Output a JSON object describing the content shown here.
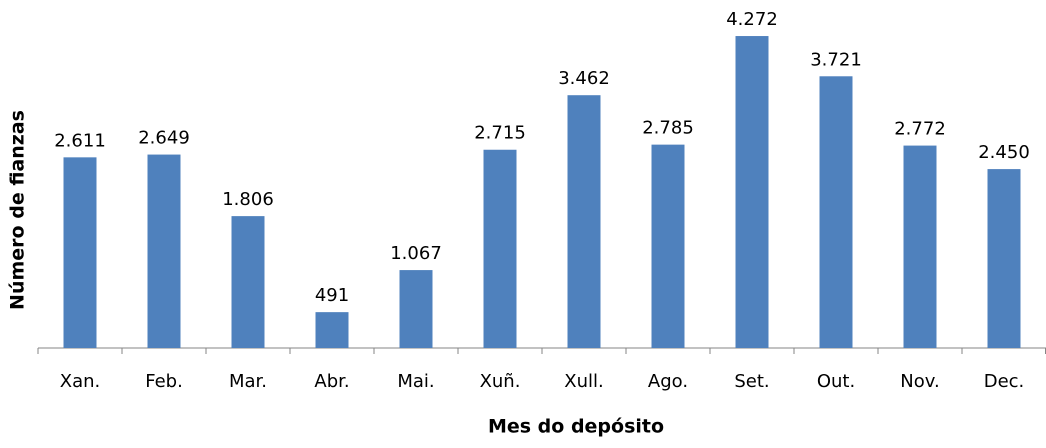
{
  "chart_data": {
    "type": "bar",
    "x_label": "Mes do depósito",
    "y_label": "Número de fianzas",
    "categories": [
      "Xan.",
      "Feb.",
      "Mar.",
      "Abr.",
      "Mai.",
      "Xuñ.",
      "Xull.",
      "Ago.",
      "Set.",
      "Out.",
      "Nov.",
      "Dec."
    ],
    "values": [
      2611,
      2649,
      1806,
      491,
      1067,
      2715,
      3462,
      2785,
      4272,
      3721,
      2772,
      2450
    ],
    "value_labels": [
      "2.611",
      "2.649",
      "1.806",
      "491",
      "1.067",
      "2.715",
      "3.462",
      "2.785",
      "4.272",
      "3.721",
      "2.772",
      "2.450"
    ],
    "color": "#4f81bd",
    "ylim": [
      0,
      4500
    ]
  }
}
